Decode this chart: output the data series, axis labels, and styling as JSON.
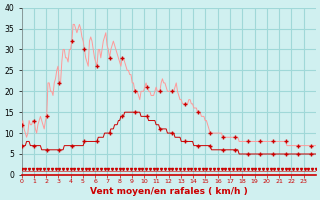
{
  "title": "Vent moyen/en rafales ( km/h )",
  "bg_color": "#d0f0f0",
  "grid_color": "#a0d8d8",
  "line1_color": "#ff9999",
  "line2_color": "#cc0000",
  "line3_color": "#800000",
  "marker_color": "#cc0000",
  "xlabel_color": "#cc0000",
  "ylim": [
    0,
    40
  ],
  "yticks": [
    0,
    5,
    10,
    15,
    20,
    25,
    30,
    35,
    40
  ],
  "xticks": [
    0,
    1,
    2,
    3,
    4,
    5,
    6,
    7,
    8,
    9,
    10,
    11,
    12,
    13,
    14,
    15,
    16,
    17,
    18,
    19,
    20,
    21,
    22,
    23
  ],
  "wind_gust": [
    12,
    13,
    11,
    10,
    9,
    10,
    13,
    12,
    12,
    13,
    13,
    11,
    10,
    12,
    13,
    14,
    13,
    12,
    11,
    13,
    14,
    22,
    22,
    20,
    20,
    19,
    22,
    23,
    25,
    26,
    22,
    22,
    27,
    30,
    30,
    28,
    28,
    27,
    30,
    30,
    32,
    36,
    36,
    35,
    34,
    35,
    36,
    35,
    33,
    32,
    30,
    28,
    27,
    26,
    32,
    33,
    32,
    30,
    28,
    27,
    26,
    30,
    30,
    28,
    30,
    32,
    33,
    34,
    31,
    30,
    28,
    30,
    31,
    32,
    31,
    30,
    29,
    28,
    27,
    26,
    28,
    28,
    27,
    26,
    25,
    25,
    24,
    24,
    22,
    22,
    20,
    20,
    20,
    19,
    18,
    20,
    20,
    20,
    21,
    22,
    21,
    20,
    20,
    19,
    19,
    19,
    20,
    21,
    20,
    20,
    20,
    22,
    23,
    22,
    22,
    21,
    20,
    20,
    20,
    20,
    20,
    20,
    21,
    22,
    20,
    19,
    18,
    18,
    17,
    17,
    17,
    17,
    17,
    18,
    18,
    17,
    17,
    16,
    16,
    16,
    15,
    15,
    15,
    14,
    14,
    14,
    13,
    13,
    12,
    11,
    10,
    10,
    10,
    10,
    10,
    10,
    10,
    10,
    10,
    10,
    9,
    9,
    9,
    9,
    9,
    9,
    9,
    9,
    9,
    9,
    9,
    9,
    9,
    8,
    8,
    8,
    8,
    8,
    8,
    8,
    8,
    8,
    8,
    8,
    8,
    8,
    8,
    8,
    8,
    8,
    8,
    8,
    8,
    8,
    8,
    8,
    8,
    8,
    8,
    8,
    8,
    8,
    8,
    8,
    8,
    8,
    8,
    8,
    8,
    8,
    8,
    7,
    7,
    7,
    7,
    7,
    7,
    7,
    7,
    7,
    7,
    7,
    7,
    7,
    7,
    7,
    7,
    7,
    7,
    7,
    7,
    7,
    7,
    7,
    7
  ],
  "wind_avg": [
    7,
    7,
    7,
    7,
    8,
    8,
    8,
    7,
    7,
    7,
    7,
    7,
    7,
    7,
    7,
    7,
    6,
    6,
    6,
    6,
    6,
    6,
    6,
    6,
    6,
    6,
    6,
    6,
    6,
    6,
    6,
    6,
    6,
    6,
    7,
    7,
    7,
    7,
    7,
    7,
    7,
    7,
    7,
    7,
    7,
    7,
    7,
    7,
    7,
    7,
    8,
    8,
    8,
    8,
    8,
    8,
    8,
    8,
    8,
    8,
    8,
    9,
    9,
    9,
    9,
    9,
    10,
    10,
    10,
    10,
    10,
    11,
    11,
    11,
    12,
    12,
    12,
    13,
    13,
    14,
    14,
    14,
    15,
    15,
    15,
    15,
    15,
    15,
    15,
    15,
    15,
    15,
    15,
    15,
    15,
    14,
    14,
    14,
    14,
    14,
    14,
    13,
    13,
    13,
    13,
    13,
    13,
    12,
    12,
    12,
    11,
    11,
    11,
    11,
    11,
    11,
    10,
    10,
    10,
    10,
    10,
    10,
    9,
    9,
    9,
    9,
    9,
    8,
    8,
    8,
    8,
    8,
    8,
    8,
    8,
    8,
    8,
    7,
    7,
    7,
    7,
    7,
    7,
    7,
    7,
    7,
    7,
    7,
    7,
    7,
    7,
    6,
    6,
    6,
    6,
    6,
    6,
    6,
    6,
    6,
    6,
    6,
    6,
    6,
    6,
    6,
    6,
    6,
    6,
    6,
    6,
    6,
    6,
    5,
    5,
    5,
    5,
    5,
    5,
    5,
    5,
    5,
    5,
    5,
    5,
    5,
    5,
    5,
    5,
    5,
    5,
    5,
    5,
    5,
    5,
    5,
    5,
    5,
    5,
    5,
    5,
    5,
    5,
    5,
    5,
    5,
    5,
    5,
    5,
    5,
    5,
    5,
    5,
    5,
    5,
    5,
    5,
    5,
    5,
    5,
    5,
    5,
    5,
    5,
    5,
    5,
    5,
    5,
    5,
    5,
    5,
    5,
    5,
    5,
    5
  ],
  "wind_dir": [
    0,
    0,
    0,
    0,
    0,
    0,
    0,
    0,
    0,
    0,
    0,
    0,
    0,
    0,
    0,
    0,
    0,
    0,
    0,
    0,
    0,
    0,
    0,
    0,
    0,
    0,
    0,
    0,
    0,
    0,
    0,
    0,
    0,
    0,
    0,
    0,
    0,
    0,
    0,
    0,
    0,
    0,
    0,
    0,
    0,
    0,
    0,
    0,
    0,
    0,
    0,
    0,
    0,
    0,
    0,
    0,
    0,
    0,
    0,
    0,
    0,
    0,
    0,
    0,
    0,
    0,
    0,
    0,
    0,
    0,
    0,
    0,
    0,
    0,
    0,
    0,
    0,
    0,
    0,
    0,
    0,
    0,
    0,
    0,
    0,
    0,
    0,
    0,
    0,
    0,
    0,
    0,
    0,
    0,
    0,
    0,
    0,
    0,
    0,
    0,
    0,
    0,
    0,
    0,
    0,
    0,
    0,
    0,
    0,
    0,
    0,
    0,
    0,
    0,
    0,
    0,
    0,
    0,
    0,
    0,
    0,
    0,
    0,
    0,
    0,
    0,
    0,
    0,
    0,
    0,
    0,
    0,
    0,
    0,
    0,
    0,
    0,
    0,
    0,
    0,
    0,
    0,
    0,
    0,
    0,
    0,
    0,
    0,
    0,
    0,
    0,
    0,
    0,
    0,
    0,
    0,
    0,
    0,
    0,
    0,
    0,
    0,
    0,
    0,
    0,
    0,
    0,
    0,
    0,
    0,
    0,
    0,
    0,
    0,
    0,
    0,
    0,
    0,
    0,
    0,
    0,
    0,
    0,
    0,
    0,
    0,
    0,
    0,
    0,
    0,
    0,
    0,
    0,
    0,
    0,
    0,
    0,
    0,
    0,
    0,
    0,
    0,
    0,
    0,
    0,
    0,
    0,
    0,
    0,
    0,
    0,
    0,
    0,
    0,
    0,
    0,
    0,
    0,
    0,
    0,
    0,
    0,
    0,
    0,
    0,
    0,
    0,
    0,
    0,
    0,
    0,
    0,
    0,
    0,
    0
  ]
}
